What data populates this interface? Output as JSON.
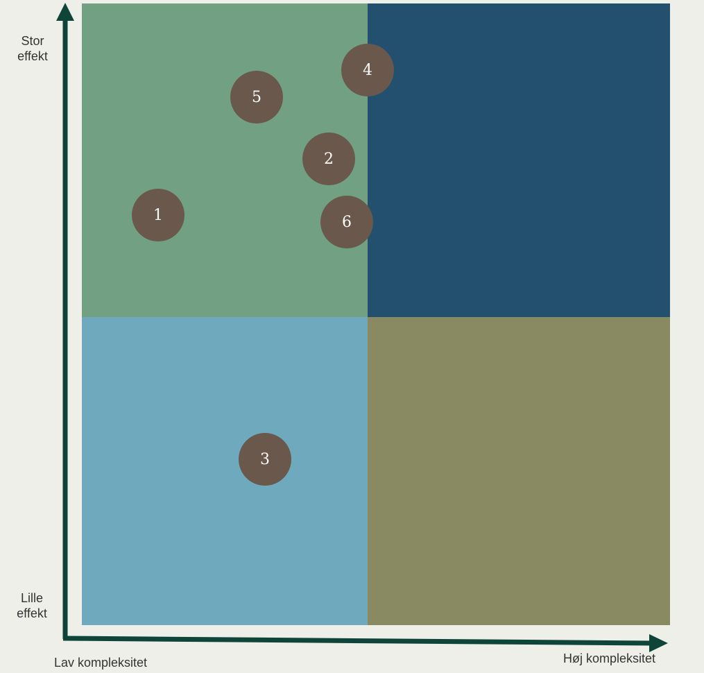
{
  "colors": {
    "background": "#efefea",
    "quadrant_top_left": "#72a082",
    "quadrant_top_right": "#22506e",
    "quadrant_bottom_left": "#6ea9be",
    "quadrant_bottom_right": "#8a8a62",
    "axis": "#0f4539",
    "marker": "#6b584c"
  },
  "y_axis": {
    "top_label": "Stor\neffekt",
    "bottom_label": "Lille\neffekt"
  },
  "x_axis": {
    "left_label": "Lav kompleksitet",
    "right_label": "Høj kompleksitet"
  },
  "items": [
    {
      "label": "1"
    },
    {
      "label": "2"
    },
    {
      "label": "3"
    },
    {
      "label": "4"
    },
    {
      "label": "5"
    },
    {
      "label": "6"
    }
  ]
}
